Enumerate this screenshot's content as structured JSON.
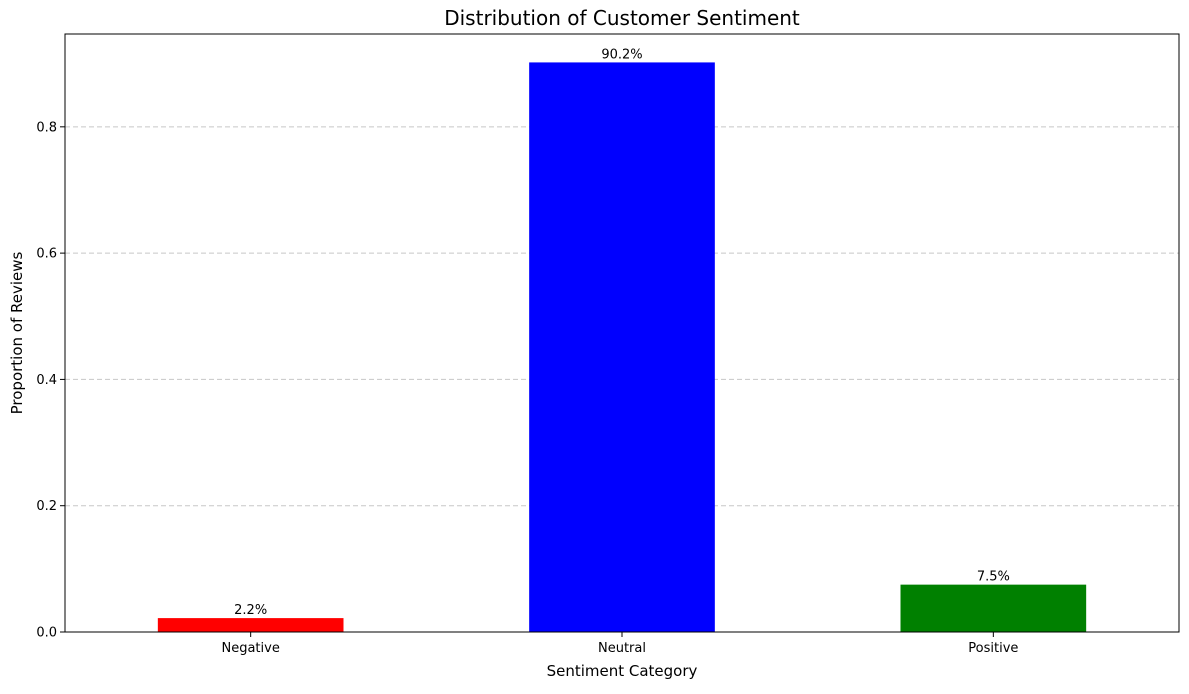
{
  "chart_data": {
    "type": "bar",
    "title": "Distribution of Customer Sentiment",
    "xlabel": "Sentiment Category",
    "ylabel": "Proportion of Reviews",
    "categories": [
      "Negative",
      "Neutral",
      "Positive"
    ],
    "values": [
      0.022,
      0.902,
      0.075
    ],
    "data_labels": [
      "2.2%",
      "90.2%",
      "7.5%"
    ],
    "colors": [
      "#ff0000",
      "#0000ff",
      "#008000"
    ],
    "ylim": [
      0,
      0.947
    ],
    "yticks": [
      0.0,
      0.2,
      0.4,
      0.6,
      0.8
    ],
    "ytick_labels": [
      "0.0",
      "0.2",
      "0.4",
      "0.6",
      "0.8"
    ],
    "grid": "y-dashed",
    "legend": "none"
  }
}
